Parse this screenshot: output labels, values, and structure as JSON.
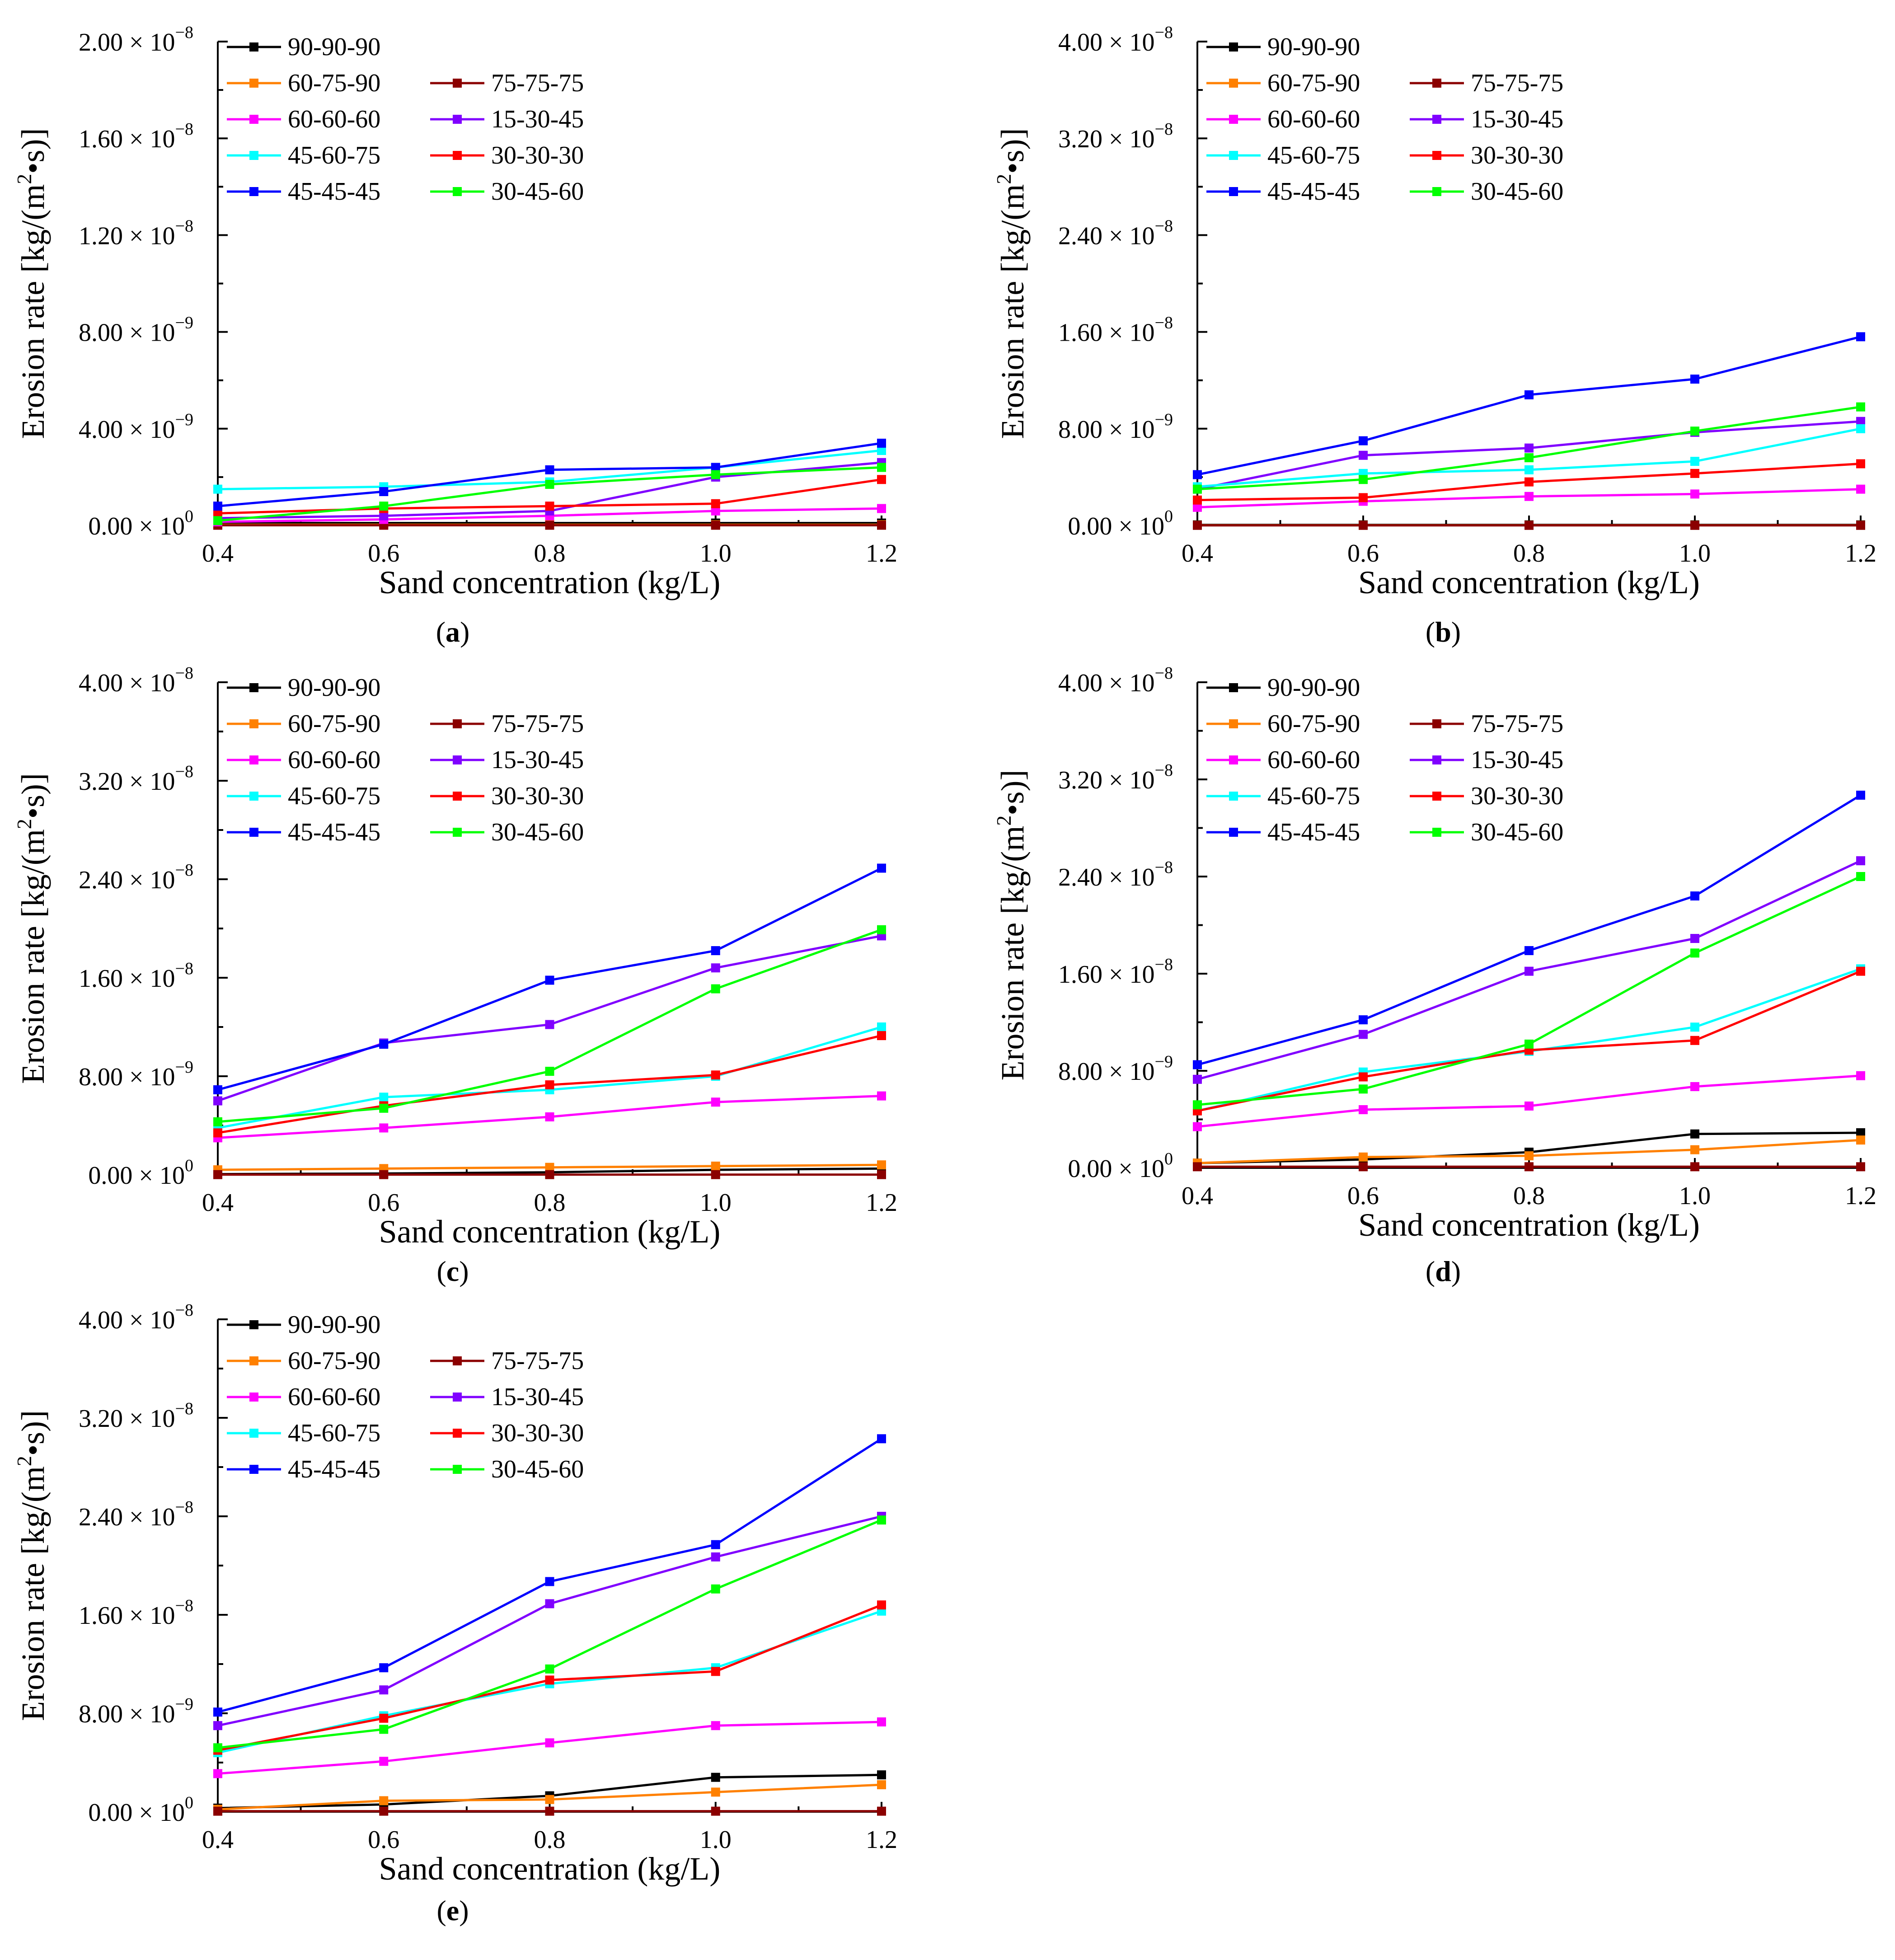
{
  "figure": {
    "colors": {
      "90-90-90": "#000000",
      "60-75-90": "#ff8000",
      "75-75-75": "#8b0000",
      "60-60-60": "#ff00ff",
      "15-30-45": "#8000ff",
      "45-60-75": "#00ffff",
      "30-30-30": "#ff0000",
      "45-45-45": "#0000ff",
      "30-45-60": "#00ff00"
    },
    "legend_order": [
      [
        "90-90-90"
      ],
      [
        "60-75-90",
        "75-75-75"
      ],
      [
        "60-60-60",
        "15-30-45"
      ],
      [
        "45-60-75",
        "30-30-30"
      ],
      [
        "45-45-45",
        "30-45-60"
      ]
    ]
  },
  "chart_data": [
    {
      "panel": "(a)",
      "panel_letter": "a",
      "type": "line",
      "xlabel": "Sand concentration (kg/L)",
      "ylabel": "Erosion rate [kg/(m2•s)]",
      "x": [
        0.4,
        0.6,
        0.8,
        1.0,
        1.2
      ],
      "xlim": [
        0.4,
        1.2
      ],
      "ylim": [
        0,
        2e-08
      ],
      "yticks": [
        {
          "value": 0,
          "mant": "0.00",
          "exp": "0"
        },
        {
          "value": 4e-09,
          "mant": "4.00",
          "exp": "−9"
        },
        {
          "value": 8e-09,
          "mant": "8.00",
          "exp": "−9"
        },
        {
          "value": 1.2e-08,
          "mant": "1.20",
          "exp": "−8"
        },
        {
          "value": 1.6e-08,
          "mant": "1.60",
          "exp": "−8"
        },
        {
          "value": 2e-08,
          "mant": "2.00",
          "exp": "−8"
        }
      ],
      "xticks": [
        "0.4",
        "0.6",
        "0.8",
        "1.0",
        "1.2"
      ],
      "series": [
        {
          "name": "90-90-90",
          "values": [
            1e-10,
            1e-10,
            1e-10,
            1e-10,
            1e-10
          ]
        },
        {
          "name": "60-75-90",
          "values": [
            3e-11,
            3e-11,
            3e-11,
            3e-11,
            3e-11
          ]
        },
        {
          "name": "75-75-75",
          "values": [
            1e-11,
            1e-11,
            1e-11,
            1e-11,
            1e-11
          ]
        },
        {
          "name": "60-60-60",
          "values": [
            1.5e-10,
            2.5e-10,
            4e-10,
            6e-10,
            7e-10
          ]
        },
        {
          "name": "15-30-45",
          "values": [
            3e-10,
            4e-10,
            6e-10,
            2e-09,
            2.6e-09
          ]
        },
        {
          "name": "45-60-75",
          "values": [
            1.5e-09,
            1.6e-09,
            1.8e-09,
            2.4e-09,
            3.1e-09
          ]
        },
        {
          "name": "30-30-30",
          "values": [
            5e-10,
            7e-10,
            8e-10,
            9e-10,
            1.9e-09
          ]
        },
        {
          "name": "45-45-45",
          "values": [
            8e-10,
            1.4e-09,
            2.3e-09,
            2.4e-09,
            3.4e-09
          ]
        },
        {
          "name": "30-45-60",
          "values": [
            2e-10,
            8e-10,
            1.7e-09,
            2.1e-09,
            2.4e-09
          ]
        }
      ]
    },
    {
      "panel": "(b)",
      "panel_letter": "b",
      "type": "line",
      "xlabel": "Sand concentration (kg/L)",
      "ylabel": "Erosion rate [kg/(m2•s)]",
      "x": [
        0.4,
        0.6,
        0.8,
        1.0,
        1.2
      ],
      "xlim": [
        0.4,
        1.2
      ],
      "ylim": [
        0,
        4e-08
      ],
      "yticks": [
        {
          "value": 0,
          "mant": "0.00",
          "exp": "0"
        },
        {
          "value": 8e-09,
          "mant": "8.00",
          "exp": "−9"
        },
        {
          "value": 1.6e-08,
          "mant": "1.60",
          "exp": "−8"
        },
        {
          "value": 2.4e-08,
          "mant": "2.40",
          "exp": "−8"
        },
        {
          "value": 3.2e-08,
          "mant": "3.20",
          "exp": "−8"
        },
        {
          "value": 4e-08,
          "mant": "4.00",
          "exp": "−8"
        }
      ],
      "xticks": [
        "0.4",
        "0.6",
        "0.8",
        "1.0",
        "1.2"
      ],
      "series": [
        {
          "name": "90-90-90",
          "values": [
            5e-11,
            5e-11,
            5e-11,
            5e-11,
            5e-11
          ]
        },
        {
          "name": "60-75-90",
          "values": [
            2e-11,
            2e-11,
            2e-11,
            2e-11,
            2e-11
          ]
        },
        {
          "name": "75-75-75",
          "values": [
            1e-11,
            1e-11,
            1e-11,
            1e-11,
            1e-11
          ]
        },
        {
          "name": "60-60-60",
          "values": [
            1.5e-09,
            2e-09,
            2.4e-09,
            2.6e-09,
            3e-09
          ]
        },
        {
          "name": "15-30-45",
          "values": [
            3e-09,
            5.8e-09,
            6.4e-09,
            7.7e-09,
            8.6e-09
          ]
        },
        {
          "name": "45-60-75",
          "values": [
            3.2e-09,
            4.3e-09,
            4.6e-09,
            5.3e-09,
            8e-09
          ]
        },
        {
          "name": "30-30-30",
          "values": [
            2.1e-09,
            2.3e-09,
            3.6e-09,
            4.3e-09,
            5.1e-09
          ]
        },
        {
          "name": "45-45-45",
          "values": [
            4.2e-09,
            7e-09,
            1.08e-08,
            1.21e-08,
            1.56e-08
          ]
        },
        {
          "name": "30-45-60",
          "values": [
            3e-09,
            3.8e-09,
            5.6e-09,
            7.8e-09,
            9.8e-09
          ]
        }
      ]
    },
    {
      "panel": "(c)",
      "panel_letter": "c",
      "type": "line",
      "xlabel": "Sand concentration (kg/L)",
      "ylabel": "Erosion rate [kg/(m2•s)]",
      "x": [
        0.4,
        0.6,
        0.8,
        1.0,
        1.2
      ],
      "xlim": [
        0.4,
        1.2
      ],
      "ylim": [
        0,
        4e-08
      ],
      "yticks": [
        {
          "value": 0,
          "mant": "0.00",
          "exp": "0"
        },
        {
          "value": 8e-09,
          "mant": "8.00",
          "exp": "−9"
        },
        {
          "value": 1.6e-08,
          "mant": "1.60",
          "exp": "−8"
        },
        {
          "value": 2.4e-08,
          "mant": "2.40",
          "exp": "−8"
        },
        {
          "value": 3.2e-08,
          "mant": "3.20",
          "exp": "−8"
        },
        {
          "value": 4e-08,
          "mant": "4.00",
          "exp": "−8"
        }
      ],
      "xticks": [
        "0.4",
        "0.6",
        "0.8",
        "1.0",
        "1.2"
      ],
      "series": [
        {
          "name": "90-90-90",
          "values": [
            5e-11,
            1e-10,
            2e-10,
            4e-10,
            5e-10
          ]
        },
        {
          "name": "60-75-90",
          "values": [
            4e-10,
            5e-10,
            6e-10,
            7e-10,
            8e-10
          ]
        },
        {
          "name": "75-75-75",
          "values": [
            1e-11,
            1e-11,
            1e-11,
            1e-11,
            1e-11
          ]
        },
        {
          "name": "60-60-60",
          "values": [
            3e-09,
            3.8e-09,
            4.7e-09,
            5.9e-09,
            6.4e-09
          ]
        },
        {
          "name": "15-30-45",
          "values": [
            6e-09,
            1.07e-08,
            1.22e-08,
            1.68e-08,
            1.94e-08
          ]
        },
        {
          "name": "45-60-75",
          "values": [
            3.8e-09,
            6.3e-09,
            6.9e-09,
            8e-09,
            1.2e-08
          ]
        },
        {
          "name": "30-30-30",
          "values": [
            3.4e-09,
            5.6e-09,
            7.3e-09,
            8.1e-09,
            1.13e-08
          ]
        },
        {
          "name": "45-45-45",
          "values": [
            6.9e-09,
            1.06e-08,
            1.58e-08,
            1.82e-08,
            2.49e-08
          ]
        },
        {
          "name": "30-45-60",
          "values": [
            4.3e-09,
            5.4e-09,
            8.4e-09,
            1.51e-08,
            1.99e-08
          ]
        }
      ]
    },
    {
      "panel": "(d)",
      "panel_letter": "d",
      "type": "line",
      "xlabel": "Sand concentration (kg/L)",
      "ylabel": "Erosion rate [kg/(m2•s)]",
      "x": [
        0.4,
        0.6,
        0.8,
        1.0,
        1.2
      ],
      "xlim": [
        0.4,
        1.2
      ],
      "ylim": [
        0,
        4e-08
      ],
      "yticks": [
        {
          "value": 0,
          "mant": "0.00",
          "exp": "0"
        },
        {
          "value": 8e-09,
          "mant": "8.00",
          "exp": "−9"
        },
        {
          "value": 1.6e-08,
          "mant": "1.60",
          "exp": "−8"
        },
        {
          "value": 2.4e-08,
          "mant": "2.40",
          "exp": "−8"
        },
        {
          "value": 3.2e-08,
          "mant": "3.20",
          "exp": "−8"
        },
        {
          "value": 4e-08,
          "mant": "4.00",
          "exp": "−8"
        }
      ],
      "xticks": [
        "0.4",
        "0.6",
        "0.8",
        "1.0",
        "1.2"
      ],
      "series": [
        {
          "name": "90-90-90",
          "values": [
            4e-10,
            7e-10,
            1.3e-09,
            2.8e-09,
            2.9e-09
          ]
        },
        {
          "name": "60-75-90",
          "values": [
            4e-10,
            9e-10,
            1e-09,
            1.5e-09,
            2.3e-09
          ]
        },
        {
          "name": "75-75-75",
          "values": [
            1e-10,
            1e-10,
            1e-10,
            1e-10,
            1e-10
          ]
        },
        {
          "name": "60-60-60",
          "values": [
            3.4e-09,
            4.8e-09,
            5.1e-09,
            6.7e-09,
            7.6e-09
          ]
        },
        {
          "name": "15-30-45",
          "values": [
            7.3e-09,
            1.1e-08,
            1.62e-08,
            1.89e-08,
            2.53e-08
          ]
        },
        {
          "name": "45-60-75",
          "values": [
            4.7e-09,
            7.9e-09,
            9.6e-09,
            1.16e-08,
            1.64e-08
          ]
        },
        {
          "name": "30-30-30",
          "values": [
            4.7e-09,
            7.5e-09,
            9.7e-09,
            1.05e-08,
            1.62e-08
          ]
        },
        {
          "name": "45-45-45",
          "values": [
            8.5e-09,
            1.22e-08,
            1.79e-08,
            2.24e-08,
            3.07e-08
          ]
        },
        {
          "name": "30-45-60",
          "values": [
            5.2e-09,
            6.5e-09,
            1.02e-08,
            1.77e-08,
            2.4e-08
          ]
        }
      ]
    },
    {
      "panel": "(e)",
      "panel_letter": "e",
      "type": "line",
      "xlabel": "Sand concentration (kg/L)",
      "ylabel": "Erosion rate [kg/(m2•s)]",
      "x": [
        0.4,
        0.6,
        0.8,
        1.0,
        1.2
      ],
      "xlim": [
        0.4,
        1.2
      ],
      "ylim": [
        0,
        4e-08
      ],
      "yticks": [
        {
          "value": 0,
          "mant": "0.00",
          "exp": "0"
        },
        {
          "value": 8e-09,
          "mant": "8.00",
          "exp": "−9"
        },
        {
          "value": 1.6e-08,
          "mant": "1.60",
          "exp": "−8"
        },
        {
          "value": 2.4e-08,
          "mant": "2.40",
          "exp": "−8"
        },
        {
          "value": 3.2e-08,
          "mant": "3.20",
          "exp": "−8"
        },
        {
          "value": 4e-08,
          "mant": "4.00",
          "exp": "−8"
        }
      ],
      "xticks": [
        "0.4",
        "0.6",
        "0.8",
        "1.0",
        "1.2"
      ],
      "series": [
        {
          "name": "90-90-90",
          "values": [
            3e-10,
            6e-10,
            1.3e-09,
            2.8e-09,
            3e-09
          ]
        },
        {
          "name": "60-75-90",
          "values": [
            2e-10,
            9e-10,
            1e-09,
            1.6e-09,
            2.2e-09
          ]
        },
        {
          "name": "75-75-75",
          "values": [
            5e-11,
            5e-11,
            5e-11,
            5e-11,
            5e-11
          ]
        },
        {
          "name": "60-60-60",
          "values": [
            3.1e-09,
            4.1e-09,
            5.6e-09,
            7e-09,
            7.3e-09
          ]
        },
        {
          "name": "15-30-45",
          "values": [
            7e-09,
            9.9e-09,
            1.69e-08,
            2.07e-08,
            2.4e-08
          ]
        },
        {
          "name": "45-60-75",
          "values": [
            4.8e-09,
            7.8e-09,
            1.04e-08,
            1.17e-08,
            1.63e-08
          ]
        },
        {
          "name": "30-30-30",
          "values": [
            5e-09,
            7.6e-09,
            1.07e-08,
            1.14e-08,
            1.68e-08
          ]
        },
        {
          "name": "45-45-45",
          "values": [
            8.1e-09,
            1.17e-08,
            1.87e-08,
            2.17e-08,
            3.03e-08
          ]
        },
        {
          "name": "30-45-60",
          "values": [
            5.2e-09,
            6.7e-09,
            1.16e-08,
            1.81e-08,
            2.37e-08
          ]
        }
      ]
    }
  ]
}
